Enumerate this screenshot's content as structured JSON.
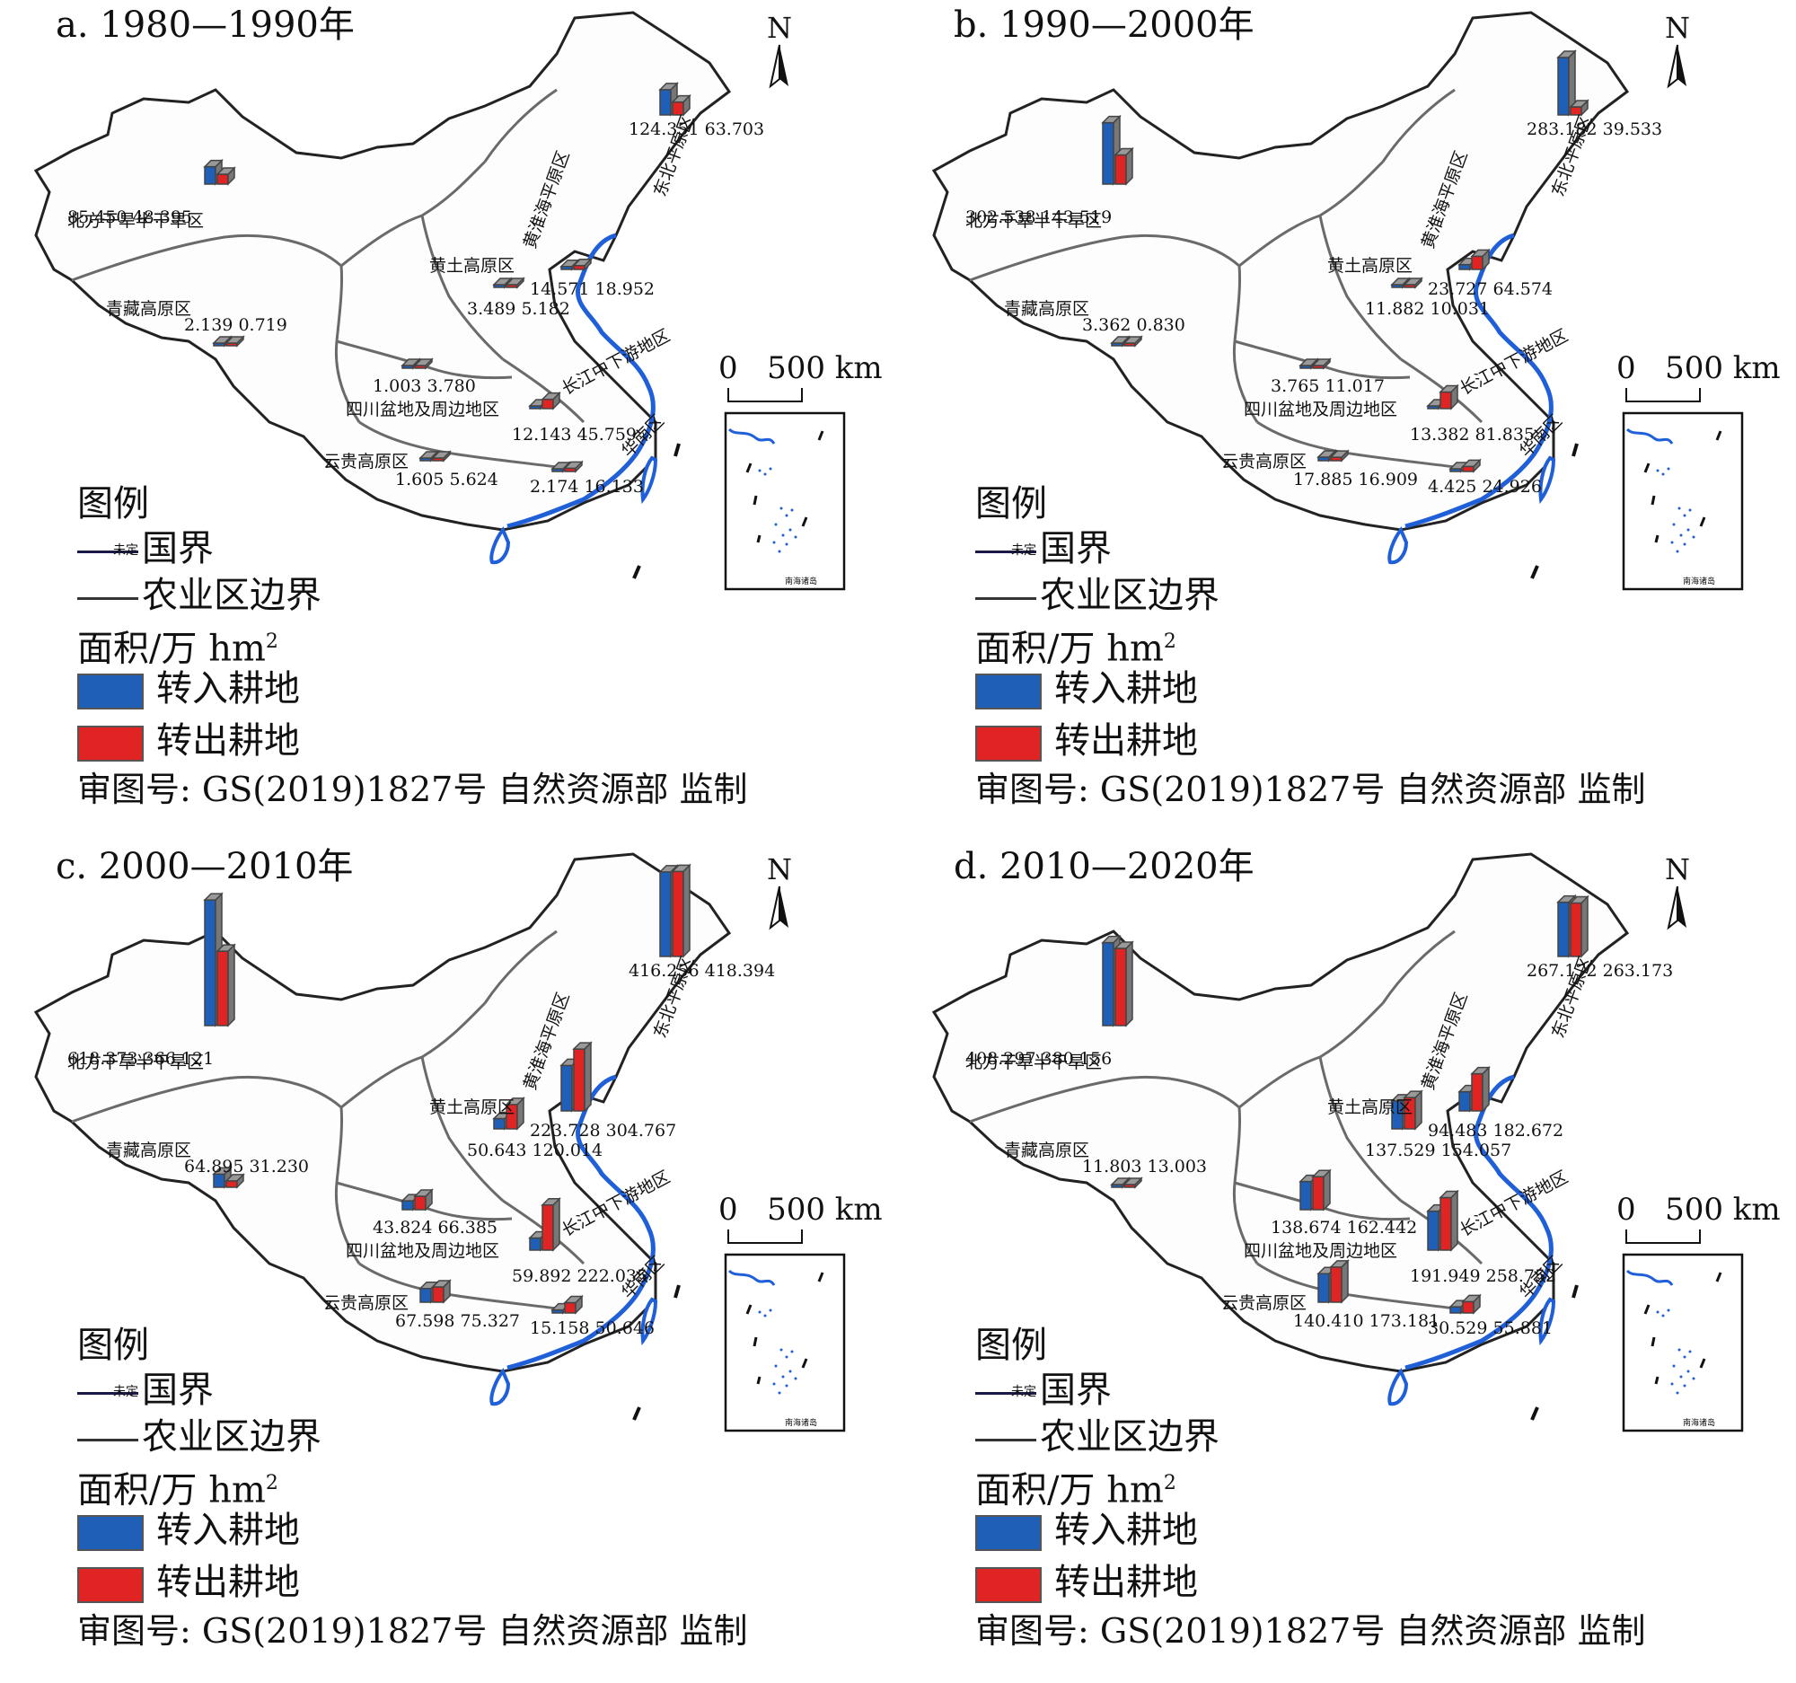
{
  "panels": [
    {
      "title": "a. 1980—1990年",
      "regions": [
        {
          "name": "北方干旱半干旱区",
          "in": "85.450",
          "out": "48.395",
          "vals": [
            85.45,
            48.395
          ]
        },
        {
          "name": "东北平原区",
          "in": "124.351",
          "out": "63.703",
          "vals": [
            124.351,
            63.703
          ]
        },
        {
          "name": "黄淮海平原区",
          "in": "14.571",
          "out": "18.952",
          "vals": [
            14.571,
            18.952
          ]
        },
        {
          "name": "黄土高原区",
          "in": "3.489",
          "out": "5.182",
          "vals": [
            3.489,
            5.182
          ]
        },
        {
          "name": "青藏高原区",
          "in": "2.139",
          "out": "0.719",
          "vals": [
            2.139,
            0.719
          ]
        },
        {
          "name": "四川盆地及周边地区",
          "in": "1.003",
          "out": "3.780",
          "vals": [
            1.003,
            3.78
          ]
        },
        {
          "name": "长江中下游地区",
          "in": "12.143",
          "out": "45.759",
          "vals": [
            12.143,
            45.759
          ]
        },
        {
          "name": "云贵高原区",
          "in": "1.605",
          "out": "5.624",
          "vals": [
            1.605,
            5.624
          ]
        },
        {
          "name": "华南区",
          "in": "2.174",
          "out": "16.133",
          "vals": [
            2.174,
            16.133
          ]
        }
      ]
    },
    {
      "title": "b. 1990—2000年",
      "regions": [
        {
          "name": "北方干旱半干旱区",
          "in": "302.538",
          "out": "143.519",
          "vals": [
            302.538,
            143.519
          ]
        },
        {
          "name": "东北平原区",
          "in": "283.182",
          "out": "39.533",
          "vals": [
            283.182,
            39.533
          ]
        },
        {
          "name": "黄淮海平原区",
          "in": "23.727",
          "out": "64.574",
          "vals": [
            23.727,
            64.574
          ]
        },
        {
          "name": "黄土高原区",
          "in": "11.882",
          "out": "10.031",
          "vals": [
            11.882,
            10.031
          ]
        },
        {
          "name": "青藏高原区",
          "in": "3.362",
          "out": "0.830",
          "vals": [
            3.362,
            0.83
          ]
        },
        {
          "name": "四川盆地及周边地区",
          "in": "3.765",
          "out": "11.017",
          "vals": [
            3.765,
            11.017
          ]
        },
        {
          "name": "长江中下游地区",
          "in": "13.382",
          "out": "81.835",
          "vals": [
            13.382,
            81.835
          ]
        },
        {
          "name": "云贵高原区",
          "in": "17.885",
          "out": "16.909",
          "vals": [
            17.885,
            16.909
          ]
        },
        {
          "name": "华南区",
          "in": "4.425",
          "out": "24.926",
          "vals": [
            4.425,
            24.926
          ]
        }
      ]
    },
    {
      "title": "c. 2000—2010年",
      "regions": [
        {
          "name": "北方干旱半干旱区",
          "in": "618.373",
          "out": "366.121",
          "vals": [
            618.373,
            366.121
          ]
        },
        {
          "name": "东北平原区",
          "in": "416.256",
          "out": "418.394",
          "vals": [
            416.256,
            418.394
          ]
        },
        {
          "name": "黄淮海平原区",
          "in": "223.728",
          "out": "304.767",
          "vals": [
            223.728,
            304.767
          ]
        },
        {
          "name": "黄土高原区",
          "in": "50.643",
          "out": "120.014",
          "vals": [
            50.643,
            120.014
          ]
        },
        {
          "name": "青藏高原区",
          "in": "64.895",
          "out": "31.230",
          "vals": [
            64.895,
            31.23
          ]
        },
        {
          "name": "四川盆地及周边地区",
          "in": "43.824",
          "out": "66.385",
          "vals": [
            43.824,
            66.385
          ]
        },
        {
          "name": "长江中下游地区",
          "in": "59.892",
          "out": "222.035",
          "vals": [
            59.892,
            222.035
          ]
        },
        {
          "name": "云贵高原区",
          "in": "67.598",
          "out": "75.327",
          "vals": [
            67.598,
            75.327
          ]
        },
        {
          "name": "华南区",
          "in": "15.158",
          "out": "50.646",
          "vals": [
            15.158,
            50.646
          ]
        }
      ]
    },
    {
      "title": "d. 2010—2020年",
      "regions": [
        {
          "name": "北方干旱半干旱区",
          "in": "408.297",
          "out": "380.156",
          "vals": [
            408.297,
            380.156
          ]
        },
        {
          "name": "东北平原区",
          "in": "267.172",
          "out": "263.173",
          "vals": [
            267.172,
            263.173
          ]
        },
        {
          "name": "黄淮海平原区",
          "in": "94.483",
          "out": "182.672",
          "vals": [
            94.483,
            182.672
          ]
        },
        {
          "name": "黄土高原区",
          "in": "137.529",
          "out": "154.057",
          "vals": [
            137.529,
            154.057
          ]
        },
        {
          "name": "青藏高原区",
          "in": "11.803",
          "out": "13.003",
          "vals": [
            11.803,
            13.003
          ]
        },
        {
          "name": "四川盆地及周边地区",
          "in": "138.674",
          "out": "162.442",
          "vals": [
            138.674,
            162.442
          ]
        },
        {
          "name": "长江中下游地区",
          "in": "191.949",
          "out": "258.752",
          "vals": [
            191.949,
            258.752
          ]
        },
        {
          "name": "云贵高原区",
          "in": "140.410",
          "out": "173.181",
          "vals": [
            140.41,
            173.181
          ]
        },
        {
          "name": "华南区",
          "in": "30.529",
          "out": "55.881",
          "vals": [
            30.529,
            55.881
          ]
        }
      ]
    }
  ],
  "legend": {
    "title": "图例",
    "border_small": "未定",
    "border_label": "国界",
    "zone_label": "农业区边界",
    "unit_label": "面积/万 hm",
    "unit_sup": "2",
    "in_label": "转入耕地",
    "out_label": "转出耕地"
  },
  "note": "审图号: GS(2019)1827号 自然资源部 监制",
  "north": "N",
  "scale": {
    "zero": "0",
    "label": "500 km"
  },
  "inset_caption": "南海诸岛",
  "colors": {
    "in": "#1f5fb8",
    "out": "#e02424",
    "border": "#1a3a8a",
    "zone": "#6a6a6a",
    "coast": "#1f5fd8"
  }
}
